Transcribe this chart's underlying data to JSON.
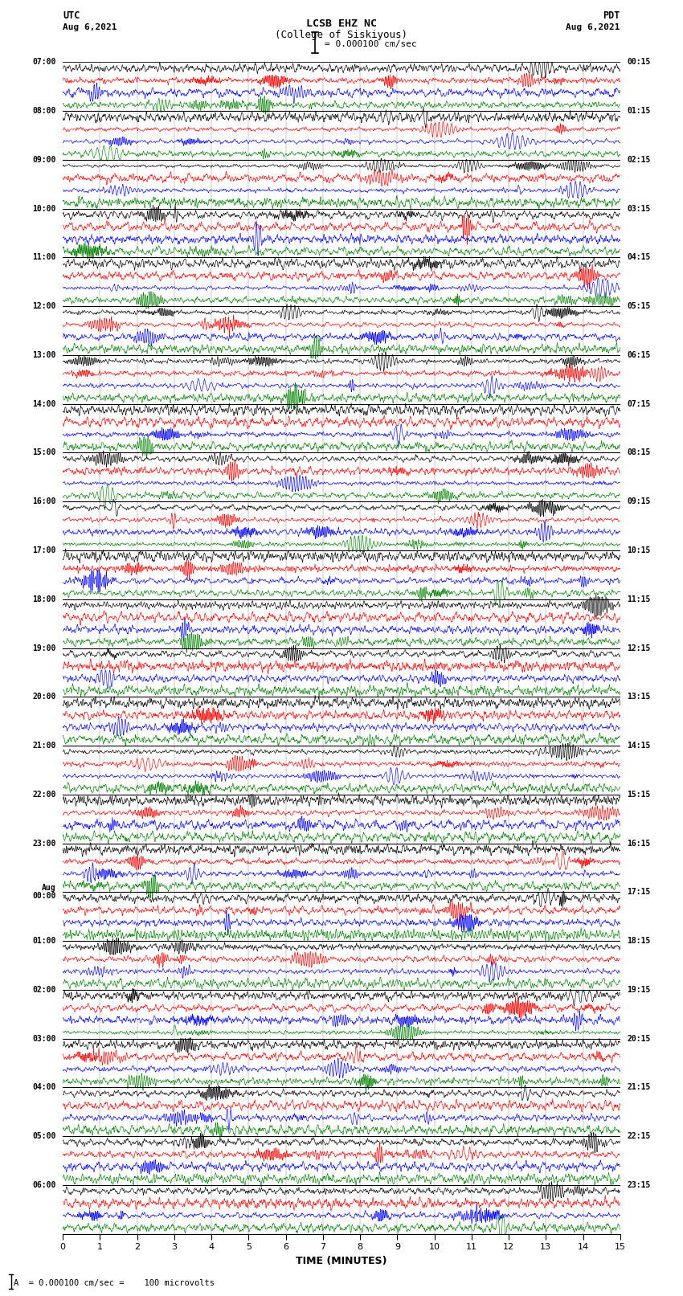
{
  "title_line1": "LCSB EHZ NC",
  "title_line2": "(College of Siskiyous)",
  "scale_label": "= 0.000100 cm/sec",
  "left_label_top": "UTC",
  "left_label_date": "Aug 6,2021",
  "right_label_top": "PDT",
  "right_label_date": "Aug 6,2021",
  "xlabel": "TIME (MINUTES)",
  "footnote": "A  = 0.000100 cm/sec =    100 microvolts",
  "utc_times": [
    "07:00",
    "08:00",
    "09:00",
    "10:00",
    "11:00",
    "12:00",
    "13:00",
    "14:00",
    "15:00",
    "16:00",
    "17:00",
    "18:00",
    "19:00",
    "20:00",
    "21:00",
    "22:00",
    "23:00",
    "Aug\n00:00",
    "01:00",
    "02:00",
    "03:00",
    "04:00",
    "05:00",
    "06:00"
  ],
  "pdt_times": [
    "00:15",
    "01:15",
    "02:15",
    "03:15",
    "04:15",
    "05:15",
    "06:15",
    "07:15",
    "08:15",
    "09:15",
    "10:15",
    "11:15",
    "12:15",
    "13:15",
    "14:15",
    "15:15",
    "16:15",
    "17:15",
    "18:15",
    "19:15",
    "20:15",
    "21:15",
    "22:15",
    "23:15"
  ],
  "n_hours": 24,
  "traces_per_hour": 4,
  "colors": [
    "black",
    "red",
    "blue",
    "green"
  ],
  "bg_color": "white",
  "fig_width": 8.5,
  "fig_height": 16.13,
  "dpi": 100,
  "x_min": 0,
  "x_max": 15,
  "x_ticks": [
    0,
    1,
    2,
    3,
    4,
    5,
    6,
    7,
    8,
    9,
    10,
    11,
    12,
    13,
    14,
    15
  ],
  "amplitude_scale": 0.42,
  "noise_seed": 42,
  "n_points": 1800
}
